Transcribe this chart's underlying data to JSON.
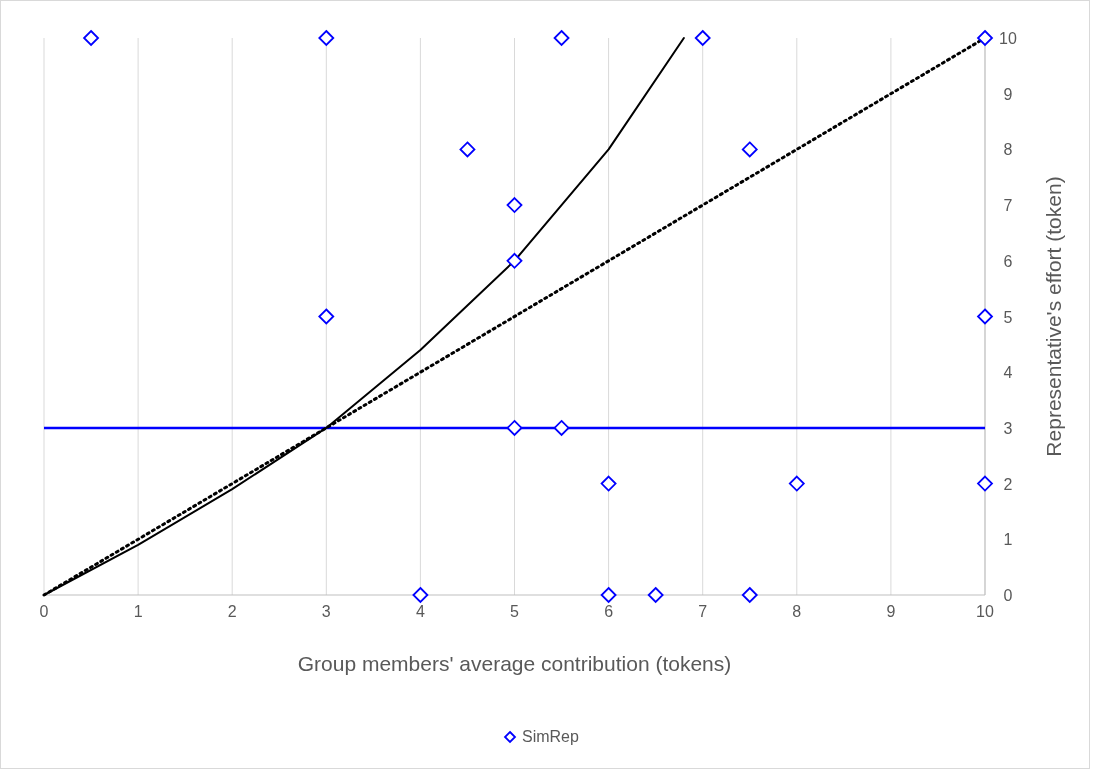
{
  "chart_data": {
    "type": "scatter",
    "xlabel": "Group members' average contribution (tokens)",
    "ylabel": "Representative's effort (token)",
    "xlim": [
      0,
      10
    ],
    "ylim": [
      0,
      10
    ],
    "xticks": [
      0,
      1,
      2,
      3,
      4,
      5,
      6,
      7,
      8,
      9,
      10
    ],
    "yticks": [
      0,
      1,
      2,
      3,
      4,
      5,
      6,
      7,
      8,
      9,
      10
    ],
    "grid": "x",
    "legend": "bottom",
    "series": [
      {
        "name": "SimRep",
        "color": "#0000ff",
        "marker": "diamond",
        "x": [
          0.5,
          3,
          5.5,
          7,
          10,
          4.5,
          7.5,
          5,
          5,
          3,
          10,
          5,
          5.5,
          6,
          8,
          10,
          4,
          6,
          6.5,
          7.5
        ],
        "values": [
          10,
          10,
          10,
          10,
          10,
          8,
          8,
          7,
          6,
          5,
          5,
          3,
          3,
          2,
          2,
          2,
          0,
          0,
          0,
          0
        ]
      },
      {
        "type": "line",
        "color": "#000000",
        "line_style": "solid",
        "marker": "none",
        "x": [
          0,
          1,
          2,
          3,
          4,
          5,
          6,
          6.8
        ],
        "values": [
          0,
          0.9,
          1.9,
          3,
          4.4,
          6,
          8,
          10
        ]
      },
      {
        "type": "line",
        "color": "#000000",
        "line_style": "dotted",
        "marker": "none",
        "x": [
          0,
          10
        ],
        "values": [
          0,
          10
        ]
      }
    ],
    "ref_lines": [
      {
        "axis": "y",
        "value": 3,
        "color": "#0000ff",
        "line_style": "solid"
      }
    ]
  }
}
